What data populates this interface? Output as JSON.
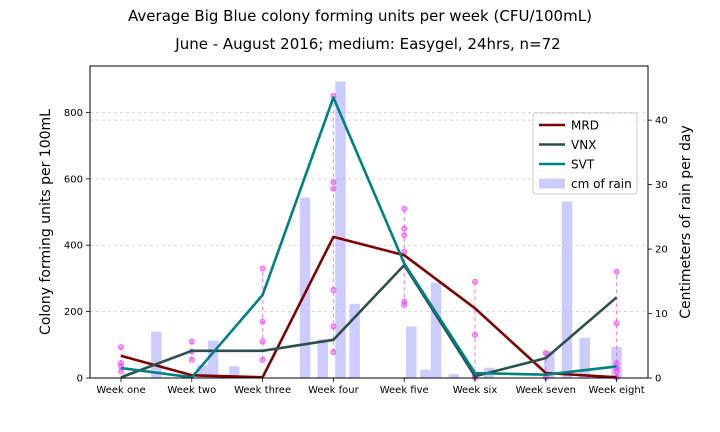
{
  "chart_data": {
    "type": "line",
    "title_line1": "Average Big Blue colony forming units per week (CFU/100mL)",
    "title_line2": "June - August 2016; medium: Easygel, 24hrs, n=72",
    "xlabel": "",
    "ylabel": "Colony forming units per 100mL",
    "y2label": "Centimeters of rain per day",
    "categories": [
      "Week one",
      "Week two",
      "Week three",
      "Week four",
      "Week five",
      "Week six",
      "Week seven",
      "Week eight"
    ],
    "ylim": [
      0,
      940
    ],
    "yticks": [
      0,
      200,
      400,
      600,
      800
    ],
    "y2lim": [
      0,
      48.4
    ],
    "y2ticks": [
      0,
      10,
      20,
      30,
      40
    ],
    "grid": true,
    "legend_position": "upper right",
    "series": [
      {
        "name": "MRD",
        "color": "#7f0000",
        "values": [
          67,
          8,
          2,
          425,
          370,
          210,
          15,
          2
        ]
      },
      {
        "name": "VNX",
        "color": "#2f4f4f",
        "values": [
          2,
          82,
          82,
          115,
          340,
          5,
          60,
          243
        ]
      },
      {
        "name": "SVT",
        "color": "#008080",
        "values": [
          30,
          2,
          250,
          845,
          345,
          15,
          10,
          35
        ]
      }
    ],
    "rain": {
      "name": "cm of rain",
      "color": "#aaaaff",
      "x": [
        0.5,
        1.15,
        1.3,
        1.6,
        2.6,
        2.85,
        3.1,
        3.3,
        4.1,
        4.3,
        4.45,
        4.7,
        5.2,
        6.05,
        6.3,
        6.55,
        7.0
      ],
      "values": [
        7.2,
        2.0,
        5.8,
        1.8,
        28.0,
        6.0,
        46.0,
        11.5,
        8.0,
        1.3,
        14.8,
        0.6,
        1.6,
        4.2,
        27.4,
        6.2,
        4.8
      ]
    },
    "samples": [
      {
        "x": 0.0,
        "values": [
          20,
          35,
          45,
          93
        ]
      },
      {
        "x": 1.0,
        "values": [
          55,
          80,
          110
        ]
      },
      {
        "x": 2.0,
        "values": [
          55,
          110,
          170,
          330
        ]
      },
      {
        "x": 3.0,
        "values": [
          78,
          155,
          265,
          570,
          590,
          850
        ]
      },
      {
        "x": 4.0,
        "values": [
          220,
          230,
          380,
          430,
          450,
          510
        ]
      },
      {
        "x": 5.0,
        "values": [
          2,
          10,
          130,
          290
        ]
      },
      {
        "x": 6.0,
        "values": [
          2,
          75
        ]
      },
      {
        "x": 7.0,
        "values": [
          2,
          20,
          30,
          45,
          165,
          320
        ]
      }
    ],
    "sample_color": "#ee44ee"
  }
}
